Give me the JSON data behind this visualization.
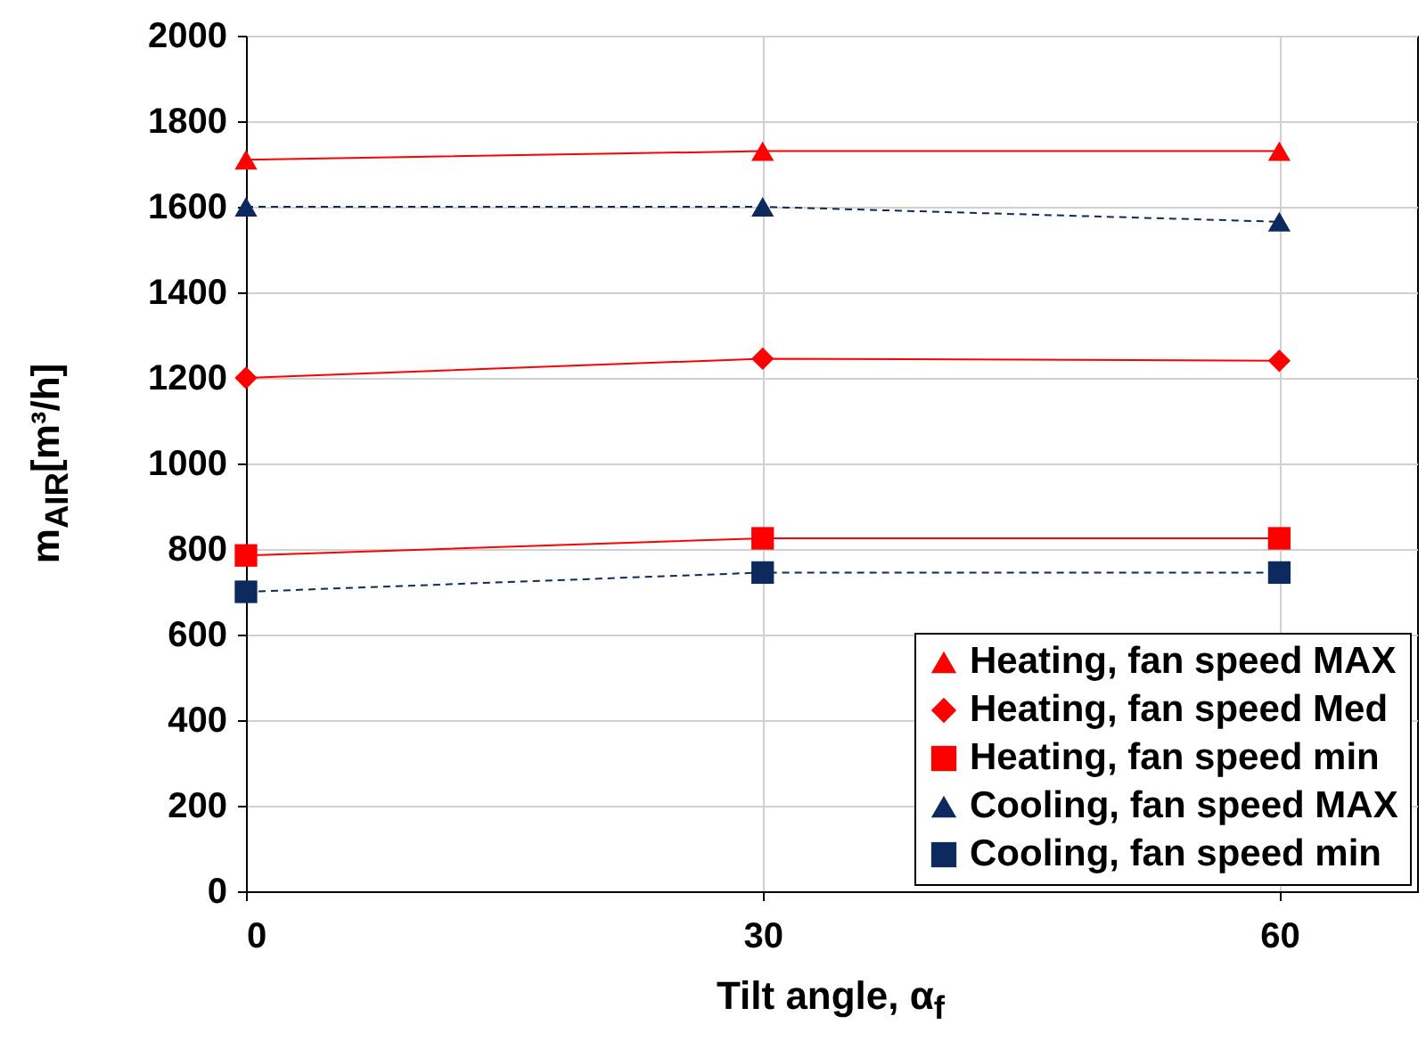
{
  "chart_data": {
    "type": "line",
    "xlabel": "Tilt angle, α$_{f}$",
    "ylabel": "m$_{AIR}$[m³/h]",
    "x": [
      0,
      30,
      60
    ],
    "xlim": [
      0,
      68
    ],
    "xticks": [
      0,
      30,
      60
    ],
    "ylim": [
      0,
      2000
    ],
    "yticks": [
      0,
      200,
      400,
      600,
      800,
      1000,
      1200,
      1400,
      1600,
      1800,
      2000
    ],
    "grid": true,
    "legend": "bottom right",
    "series": [
      {
        "name": "Heating, fan speed MAX",
        "color": "#ff0000",
        "marker": "triangle",
        "line_style": "solid",
        "values": [
          1710,
          1730,
          1730
        ]
      },
      {
        "name": "Heating, fan speed Med",
        "color": "#ff0000",
        "marker": "diamond",
        "line_style": "solid",
        "values": [
          1200,
          1245,
          1240
        ]
      },
      {
        "name": "Heating, fan speed min",
        "color": "#ff0000",
        "marker": "square",
        "line_style": "solid",
        "values": [
          785,
          825,
          825
        ]
      },
      {
        "name": "Cooling, fan speed MAX",
        "color": "#0d2a5e",
        "marker": "triangle",
        "line_style": "dashed",
        "values": [
          1600,
          1600,
          1565
        ]
      },
      {
        "name": "Cooling, fan speed min",
        "color": "#0d2a5e",
        "marker": "square",
        "line_style": "dashed",
        "values": [
          700,
          745,
          745
        ]
      }
    ]
  }
}
